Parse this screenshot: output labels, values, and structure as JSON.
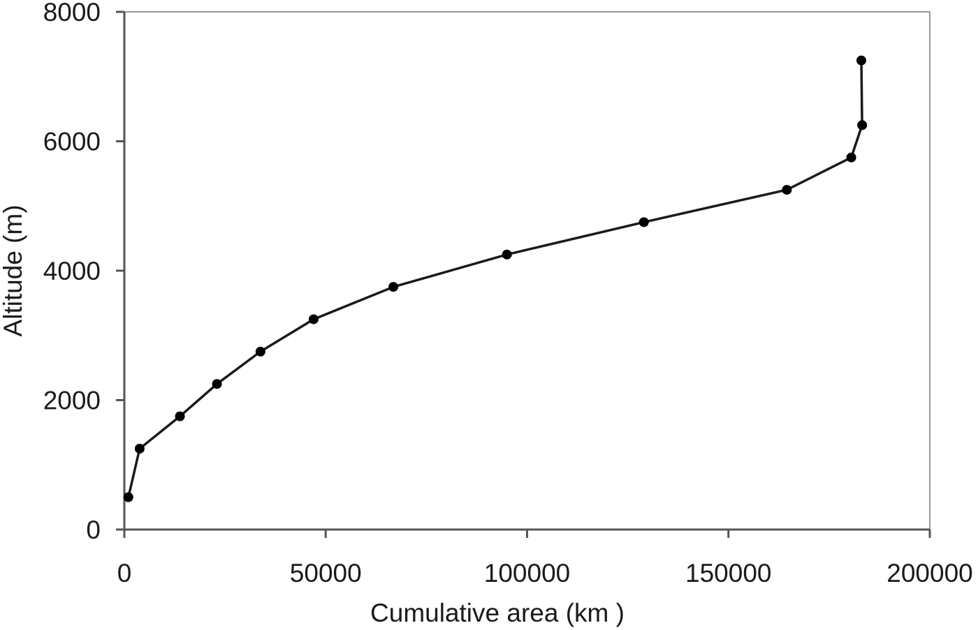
{
  "chart_data": {
    "type": "line",
    "title": "",
    "xlabel": "Cumulative area (km )",
    "ylabel": "Altitude (m)",
    "xlim": [
      0,
      200000
    ],
    "ylim": [
      0,
      8000
    ],
    "x_ticks": [
      0,
      50000,
      100000,
      150000,
      200000
    ],
    "y_ticks": [
      0,
      2000,
      4000,
      6000,
      8000
    ],
    "x_tick_labels": [
      "0",
      "50000",
      "100000",
      "150000",
      "200000"
    ],
    "y_tick_labels": [
      "0",
      "2000",
      "4000",
      "6000",
      "8000"
    ],
    "grid": false,
    "legend": "none",
    "colors": {
      "line": "#1a1a1a",
      "marker": "#000000",
      "frame": "#9a9a9a",
      "axis": "#555555"
    },
    "series": [
      {
        "x": [
          1000,
          3800,
          13800,
          23000,
          33800,
          47000,
          66800,
          95000,
          129000,
          164500,
          180500,
          183200,
          183000
        ],
        "y": [
          500,
          1250,
          1750,
          2250,
          2750,
          3250,
          3750,
          4250,
          4750,
          5250,
          5750,
          6250,
          7250
        ]
      }
    ]
  }
}
